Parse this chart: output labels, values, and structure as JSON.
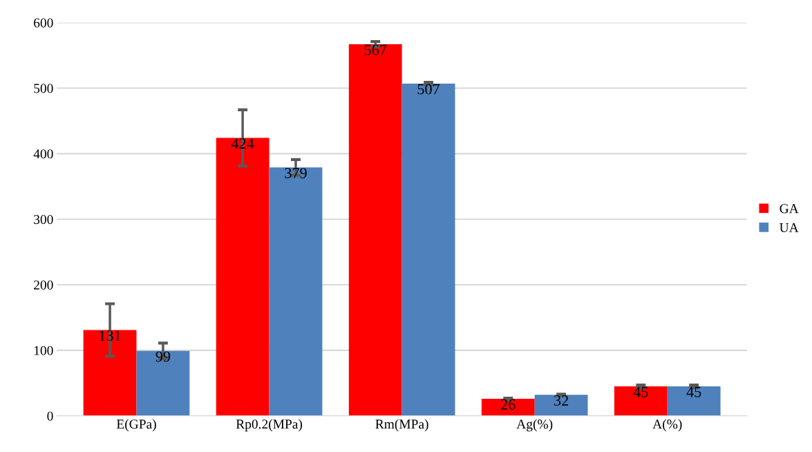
{
  "chart_data": {
    "type": "bar",
    "categories": [
      "E(GPa)",
      "Rp0.2(MPa)",
      "Rm(MPa)",
      "Ag(%)",
      "A(%)"
    ],
    "series": [
      {
        "name": "GA",
        "color": "#ff0000",
        "values": [
          131,
          424,
          567,
          26,
          45
        ],
        "errors": [
          40,
          43,
          4,
          1,
          2
        ]
      },
      {
        "name": "UA",
        "color": "#4f81bd",
        "values": [
          99,
          379,
          507,
          32,
          45
        ],
        "errors": [
          12,
          12,
          2,
          1,
          2
        ]
      }
    ],
    "ylim": [
      0,
      600
    ],
    "yticks": [
      0,
      100,
      200,
      300,
      400,
      500,
      600
    ],
    "grid": "y",
    "legend": "right",
    "data_labels": true
  }
}
